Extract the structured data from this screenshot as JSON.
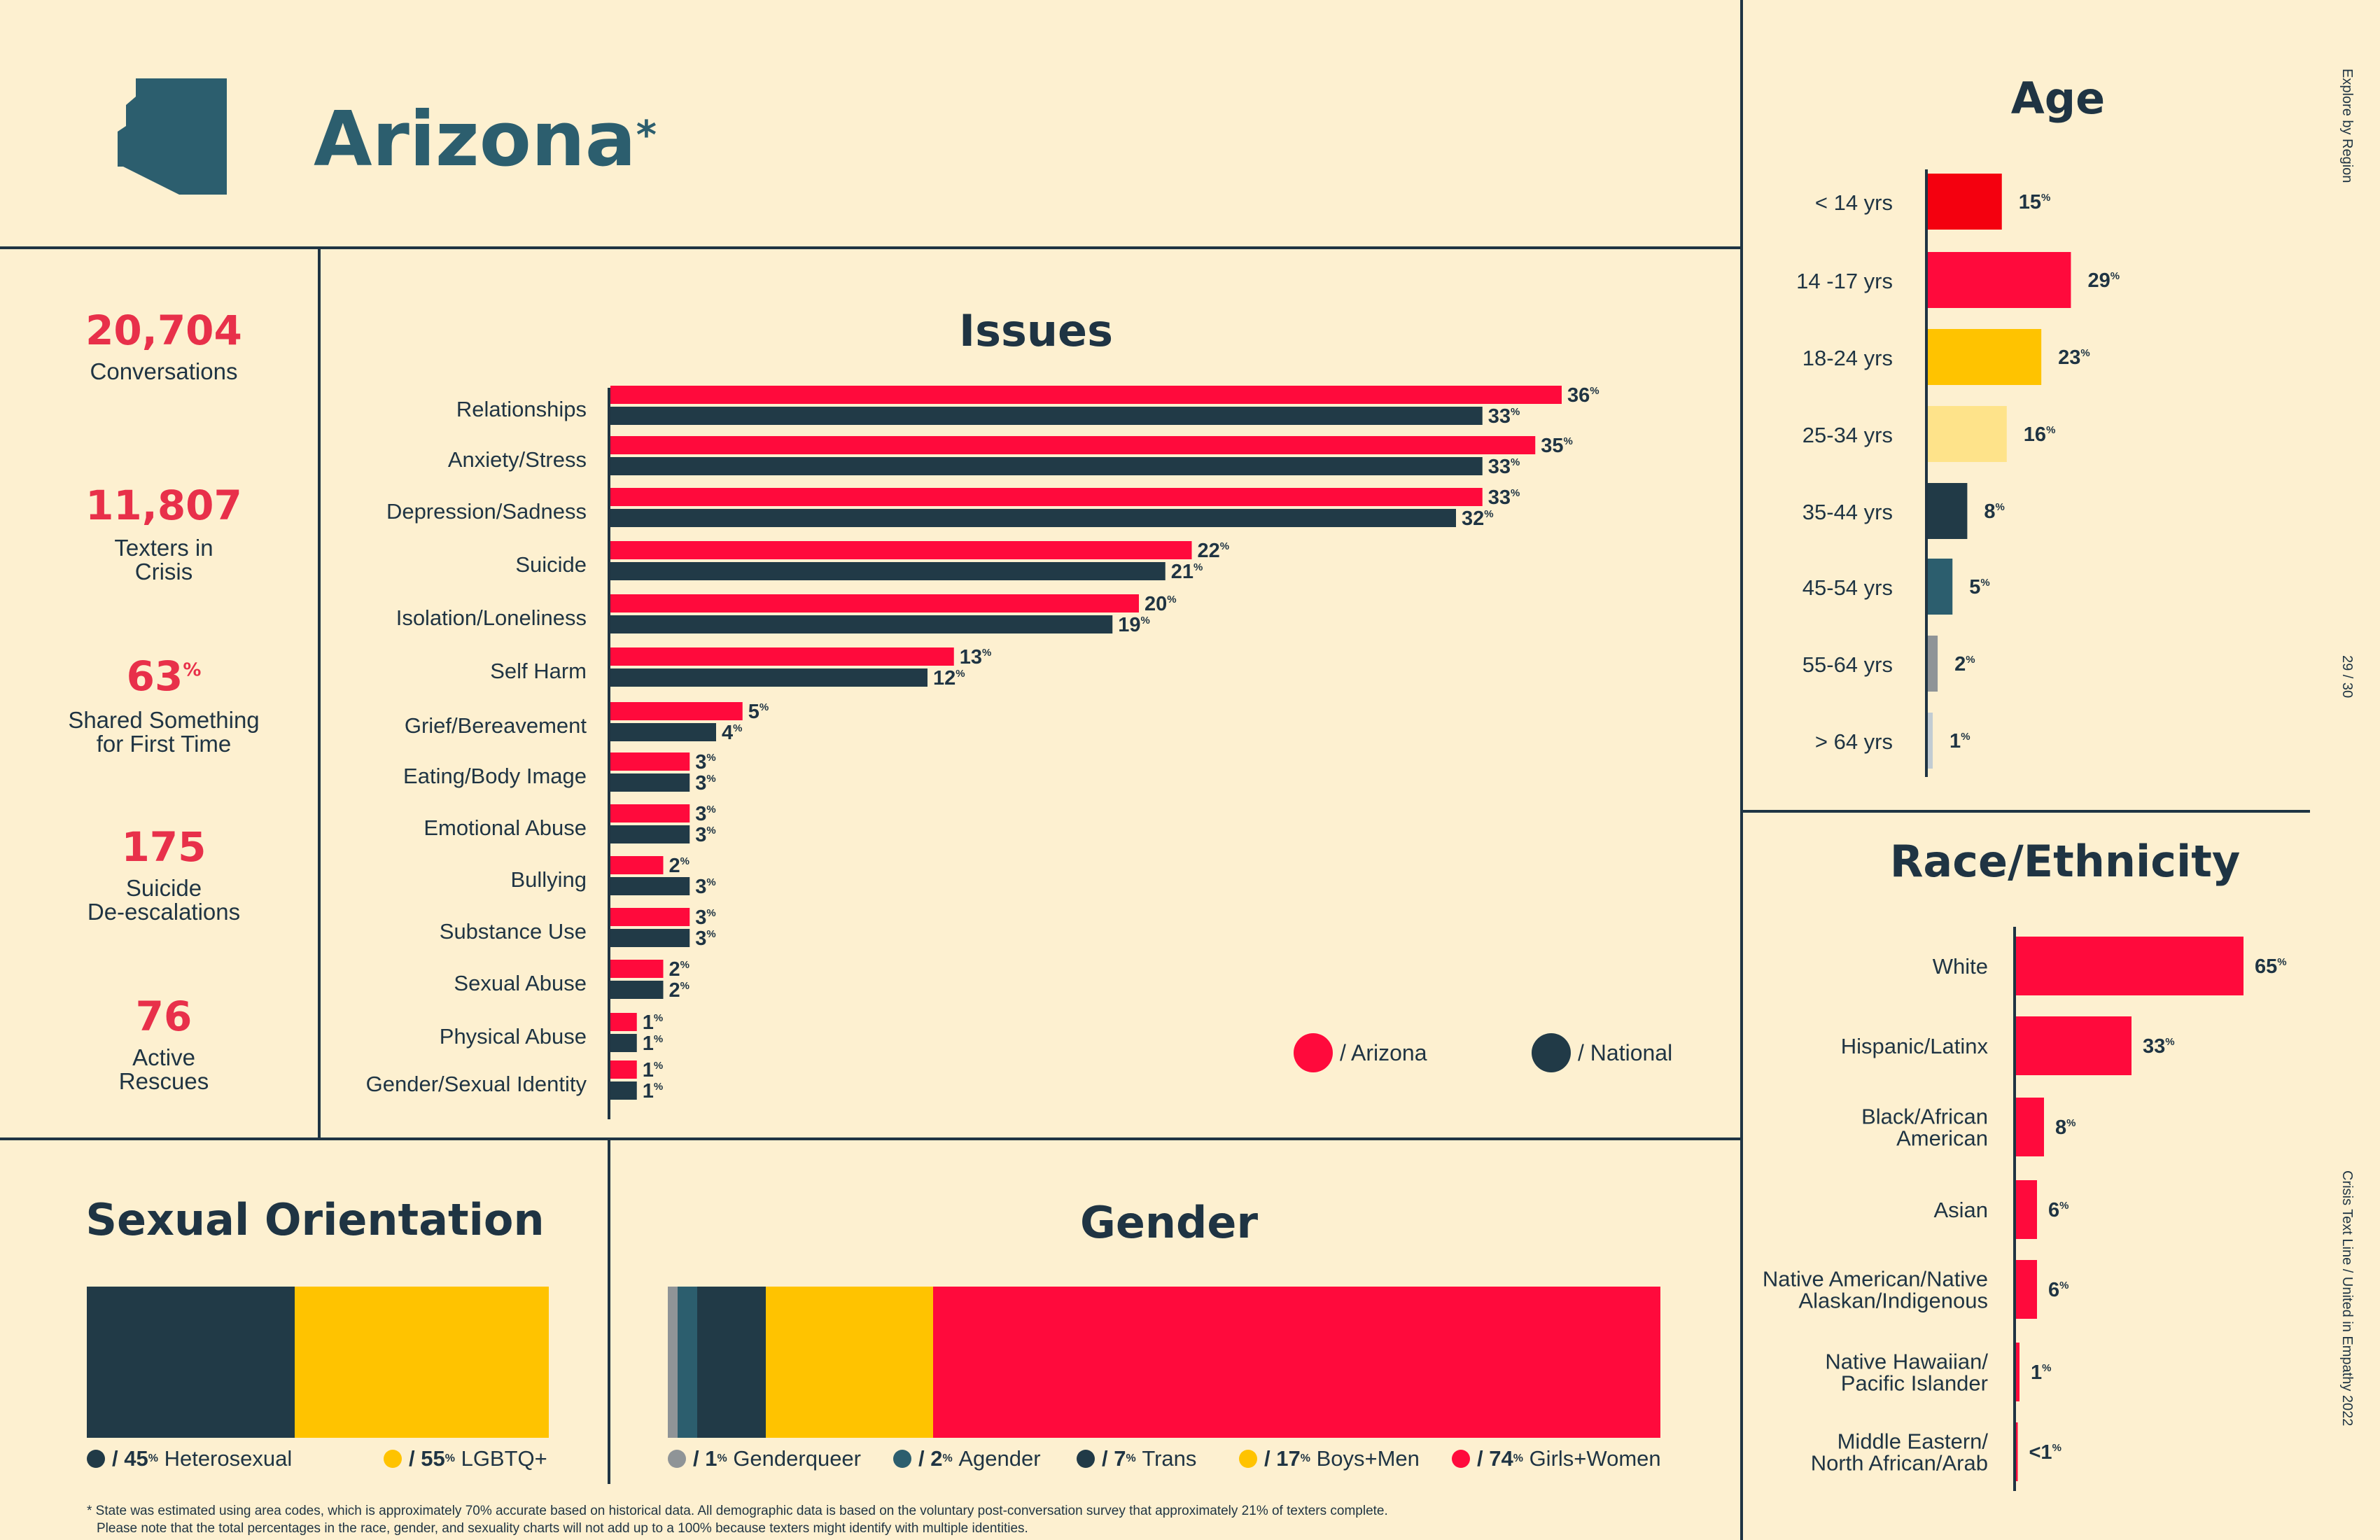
{
  "header": {
    "state": "Arizona",
    "asterisk": "*"
  },
  "stats": [
    {
      "value": "20,704",
      "label": "Conversations"
    },
    {
      "value": "11,807",
      "label": "Texters in\nCrisis"
    },
    {
      "value": "63",
      "sup": "%",
      "label": "Shared Something\nfor First Time"
    },
    {
      "value": "175",
      "label": "Suicide\nDe-escalations"
    },
    {
      "value": "76",
      "label": "Active\nRescues"
    }
  ],
  "colors": {
    "arizona": "#ff0a3c",
    "national": "#213a47",
    "red_bright": "#f4000f",
    "yellow": "#ffc300",
    "light_yellow": "#fee38a",
    "teal": "#2c5e6e",
    "grey": "#8f9497",
    "light_grey": "#c2ccd3",
    "background": "#fdf0d0",
    "text": "#1f3443"
  },
  "chart_data": [
    {
      "id": "issues",
      "type": "bar",
      "title": "Issues",
      "orientation": "horizontal",
      "categories": [
        "Relationships",
        "Anxiety/Stress",
        "Depression/Sadness",
        "Suicide",
        "Isolation/Loneliness",
        "Self Harm",
        "Grief/Bereavement",
        "Eating/Body Image",
        "Emotional Abuse",
        "Bullying",
        "Substance Use",
        "Sexual Abuse",
        "Physical Abuse",
        "Gender/Sexual Identity"
      ],
      "series": [
        {
          "name": "Arizona",
          "values": [
            36,
            35,
            33,
            22,
            20,
            13,
            5,
            3,
            3,
            2,
            3,
            2,
            1,
            1
          ]
        },
        {
          "name": "National",
          "values": [
            33,
            33,
            32,
            21,
            19,
            12,
            4,
            3,
            3,
            3,
            3,
            2,
            1,
            1
          ]
        }
      ],
      "legend": [
        "/ Arizona",
        "/ National"
      ],
      "legend_position": "bottom-right",
      "value_suffix": "%"
    },
    {
      "id": "age",
      "type": "bar",
      "title": "Age",
      "orientation": "horizontal",
      "categories": [
        "< 14 yrs",
        "14 -17 yrs",
        "18-24 yrs",
        "25-34 yrs",
        "35-44 yrs",
        "45-54 yrs",
        "55-64 yrs",
        "> 64 yrs"
      ],
      "values": [
        15,
        29,
        23,
        16,
        8,
        5,
        2,
        1
      ],
      "colors": [
        "#f4000f",
        "#ff0a3c",
        "#ffc300",
        "#fee38a",
        "#213a47",
        "#2c5e6e",
        "#8f9497",
        "#c2ccd3"
      ],
      "value_suffix": "%"
    },
    {
      "id": "race",
      "type": "bar",
      "title": "Race/Ethnicity",
      "orientation": "horizontal",
      "categories": [
        "White",
        "Hispanic/Latinx",
        "Black/African\nAmerican",
        "Asian",
        "Native American/Native\nAlaskan/Indigenous",
        "Native Hawaiian/\nPacific Islander",
        "Middle Eastern/\nNorth African/Arab"
      ],
      "values": [
        65,
        33,
        8,
        6,
        6,
        1,
        0.5
      ],
      "value_labels": [
        "65",
        "33",
        "8",
        "6",
        "6",
        "1",
        "<1"
      ],
      "value_suffix": "%"
    },
    {
      "id": "orientation",
      "type": "bar",
      "title": "Sexual Orientation",
      "stacked": true,
      "segments": [
        {
          "name": "Heterosexual",
          "value": 45,
          "label": "/ 45",
          "color": "#213a47"
        },
        {
          "name": "LGBTQ+",
          "value": 55,
          "label": "/ 55",
          "color": "#ffc300"
        }
      ]
    },
    {
      "id": "gender",
      "type": "bar",
      "title": "Gender",
      "stacked": true,
      "segments": [
        {
          "name": "Genderqueer",
          "value": 1,
          "label": "/ 1",
          "color": "#8f9497"
        },
        {
          "name": "Agender",
          "value": 2,
          "label": "/ 2",
          "color": "#2c5e6e"
        },
        {
          "name": "Trans",
          "value": 7,
          "label": "/ 7",
          "color": "#213a47"
        },
        {
          "name": "Boys+Men",
          "value": 17,
          "label": "/ 17",
          "color": "#ffc300"
        },
        {
          "name": "Girls+Women",
          "value": 74,
          "label": "/ 74",
          "color": "#ff0a3c"
        }
      ]
    }
  ],
  "footnote": {
    "line1": "* State was estimated using area codes, which is approximately 70% accurate based on historical data. All demographic data is based on the voluntary post-conversation survey that approximately 21% of texters complete.",
    "line2": "Please note that the total percentages in the race, gender, and sexuality charts will not add up to a 100% because texters might identify with multiple identities."
  },
  "side": {
    "explore": "Explore by Region",
    "page": "29 / 30",
    "credit": "Crisis Text Line  /  United in Empathy 2022"
  }
}
